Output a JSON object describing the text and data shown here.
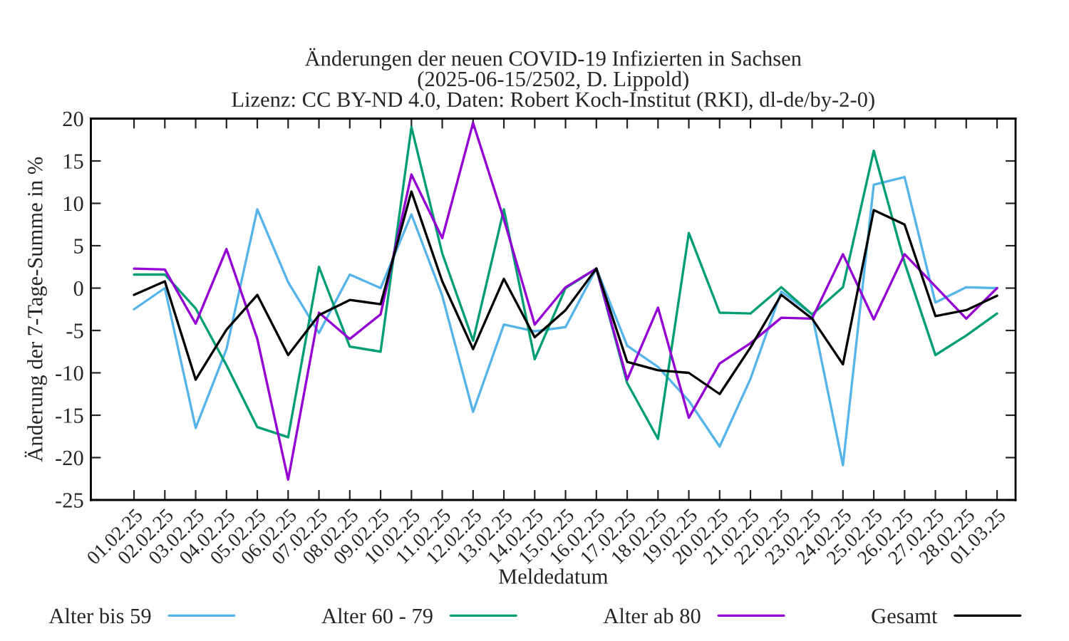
{
  "chart_data": {
    "type": "line",
    "title": "Änderungen der neuen COVID-19 Infizierten in Sachsen\n(2025-06-15/2502, D. Lippold)\nLizenz: CC BY-ND 4.0, Daten: Robert Koch-Institut (RKI), dl-de/by-2-0)",
    "xlabel": "Meldedatum",
    "ylabel": "Änderung der 7-Tage-Summe in %",
    "categories": [
      "01.02.25",
      "02.02.25",
      "03.02.25",
      "04.02.25",
      "05.02.25",
      "06.02.25",
      "07.02.25",
      "08.02.25",
      "09.02.25",
      "10.02.25",
      "11.02.25",
      "12.02.25",
      "13.02.25",
      "14.02.25",
      "15.02.25",
      "16.02.25",
      "17.02.25",
      "18.02.25",
      "19.02.25",
      "20.02.25",
      "21.02.25",
      "22.02.25",
      "23.02.25",
      "24.02.25",
      "25.02.25",
      "26.02.25",
      "27.02.25",
      "28.02.25",
      "01.03.25"
    ],
    "series": [
      {
        "name": "Alter bis 59",
        "color": "#56b4e9",
        "values": [
          -2.5,
          0,
          -16.5,
          -7.2,
          9.3,
          0.7,
          -5.3,
          1.6,
          0,
          8.7,
          -0.9,
          -14.6,
          -4.3,
          -5.1,
          -4.6,
          2.3,
          -6.8,
          -9.3,
          -13.3,
          -18.7,
          -10.7,
          -0.4,
          -3.1,
          -20.9,
          12.2,
          13.1,
          -1.7,
          0.1,
          0
        ]
      },
      {
        "name": "Alter 60 - 79",
        "color": "#009e73",
        "values": [
          1.6,
          1.6,
          -2.4,
          -9.1,
          -16.4,
          -17.6,
          2.5,
          -6.9,
          -7.5,
          19.0,
          4.1,
          -6.2,
          9.3,
          -8.4,
          0,
          2.3,
          -11.2,
          -17.8,
          6.5,
          -2.9,
          -3.0,
          0.1,
          -3.1,
          0.1,
          16.2,
          3.0,
          -7.9,
          -5.6,
          -3.0
        ]
      },
      {
        "name": "Alter ab 80",
        "color": "#9400d3",
        "values": [
          2.3,
          2.2,
          -4.2,
          4.6,
          -6.0,
          -22.6,
          -2.9,
          -6.0,
          -3.1,
          13.4,
          5.9,
          19.5,
          8.1,
          -4.3,
          0.1,
          2.3,
          -10.8,
          -2.3,
          -15.3,
          -8.9,
          -6.5,
          -3.5,
          -3.6,
          4.0,
          -3.7,
          4.0,
          0.2,
          -3.6,
          0
        ]
      },
      {
        "name": "Gesamt",
        "color": "#000000",
        "values": [
          -0.8,
          0.8,
          -10.8,
          -4.9,
          -0.8,
          -7.9,
          -3.2,
          -1.4,
          -1.9,
          11.4,
          0.8,
          -7.2,
          1.1,
          -5.8,
          -2.6,
          2.3,
          -8.7,
          -9.7,
          -10.0,
          -12.5,
          -7.0,
          -0.8,
          -3.6,
          -9.0,
          9.2,
          7.5,
          -3.3,
          -2.6,
          -0.9
        ]
      }
    ],
    "ylim": [
      -25,
      20
    ],
    "yticks": [
      -25,
      -20,
      -15,
      -10,
      -5,
      0,
      5,
      10,
      15,
      20
    ],
    "grid": false,
    "legend": "bottom",
    "marker": "none",
    "line_style": "solid"
  }
}
